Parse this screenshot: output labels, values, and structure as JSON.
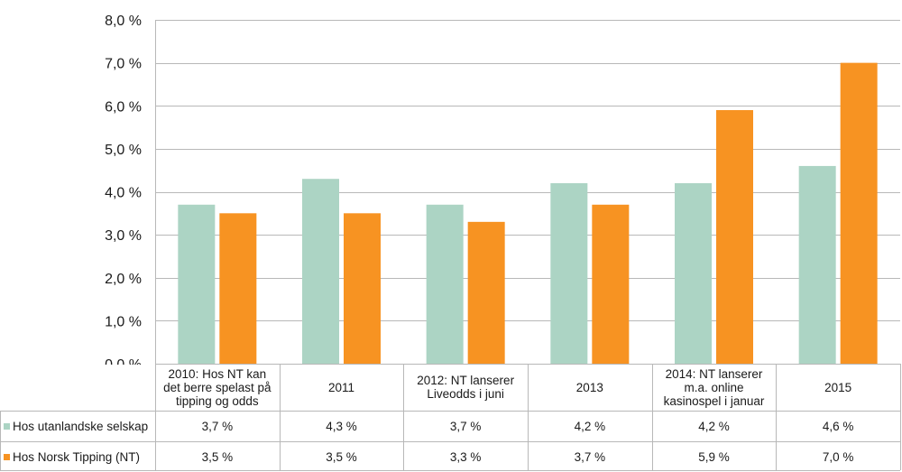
{
  "chart_data": {
    "type": "bar",
    "title": "",
    "xlabel": "",
    "ylabel": "",
    "ylim": [
      0,
      8
    ],
    "yticks": [
      0,
      1,
      2,
      3,
      4,
      5,
      6,
      7,
      8
    ],
    "ytick_labels": [
      "0,0 %",
      "1,0 %",
      "2,0 %",
      "3,0 %",
      "4,0 %",
      "5,0 %",
      "6,0 %",
      "7,0 %",
      "8,0 %"
    ],
    "grid": true,
    "legend": "table-left",
    "categories": [
      "2010: Hos NT kan\ndet berre spelast på\ntipping og odds",
      "2011",
      "2012: NT lanserer\nLiveodds i juni",
      "2013",
      "2014: NT lanserer\nm.a. online\nkasinospel i januar",
      "2015"
    ],
    "series": [
      {
        "name": "Hos utanlandske selskap",
        "color": "#acd4c4",
        "values": [
          3.7,
          4.3,
          3.7,
          4.2,
          4.2,
          4.6
        ],
        "labels": [
          "3,7 %",
          "4,3 %",
          "3,7 %",
          "4,2 %",
          "4,2 %",
          "4,6 %"
        ]
      },
      {
        "name": "Hos Norsk Tipping (NT)",
        "color": "#f79322",
        "values": [
          3.5,
          3.5,
          3.3,
          3.7,
          5.9,
          7.0
        ],
        "labels": [
          "3,5 %",
          "3,5 %",
          "3,3 %",
          "3,7 %",
          "5,9 %",
          "7,0 %"
        ]
      }
    ]
  }
}
